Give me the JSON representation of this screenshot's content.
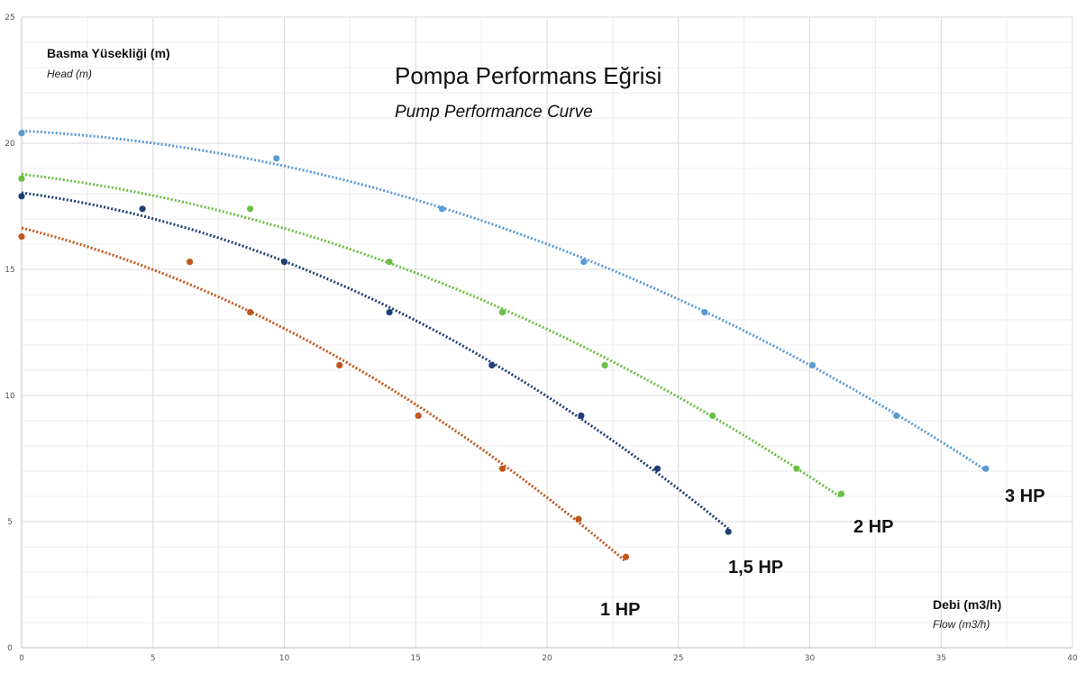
{
  "chart_data": {
    "type": "scatter",
    "title": "Pompa Performans Eğrisi",
    "subtitle": "Pump Performance Curve",
    "ylabel": "Basma Yüsekliği (m)",
    "ylabel_sub": "Head (m)",
    "xlabel": "Debi (m3/h)",
    "xlabel_sub": "Flow (m3/h)",
    "xlim": [
      0,
      40
    ],
    "ylim": [
      0,
      25
    ],
    "xticks": [
      0,
      5,
      10,
      15,
      20,
      25,
      30,
      35,
      40
    ],
    "yticks": [
      0,
      5,
      10,
      15,
      20,
      25
    ],
    "grid": true,
    "trendline": "polynomial, dotted",
    "series": [
      {
        "name": "1 HP",
        "color": "#c0561b",
        "label_position": "below-left",
        "points": [
          [
            0,
            16.3
          ],
          [
            6.4,
            15.3
          ],
          [
            8.7,
            13.3
          ],
          [
            12.1,
            11.2
          ],
          [
            15.1,
            9.2
          ],
          [
            18.3,
            7.1
          ],
          [
            21.2,
            5.1
          ],
          [
            23.0,
            3.6
          ]
        ]
      },
      {
        "name": "1,5 HP",
        "color": "#1f3f73",
        "label_position": "below-right",
        "points": [
          [
            0,
            17.9
          ],
          [
            4.6,
            17.4
          ],
          [
            10.0,
            15.3
          ],
          [
            14.0,
            13.3
          ],
          [
            17.9,
            11.2
          ],
          [
            21.3,
            9.2
          ],
          [
            24.2,
            7.1
          ],
          [
            26.9,
            4.6
          ]
        ]
      },
      {
        "name": "2 HP",
        "color": "#6abf45",
        "label_position": "below-right",
        "points": [
          [
            0,
            18.6
          ],
          [
            8.7,
            17.4
          ],
          [
            14.0,
            15.3
          ],
          [
            18.3,
            13.3
          ],
          [
            22.2,
            11.2
          ],
          [
            26.3,
            9.2
          ],
          [
            29.5,
            7.1
          ],
          [
            31.2,
            6.1
          ]
        ]
      },
      {
        "name": "3 HP",
        "color": "#5b9bd5",
        "label_position": "right",
        "points": [
          [
            0,
            20.4
          ],
          [
            9.7,
            19.4
          ],
          [
            16.0,
            17.4
          ],
          [
            21.4,
            15.3
          ],
          [
            26.0,
            13.3
          ],
          [
            30.1,
            11.2
          ],
          [
            33.3,
            9.2
          ],
          [
            36.7,
            7.1
          ]
        ]
      }
    ]
  }
}
